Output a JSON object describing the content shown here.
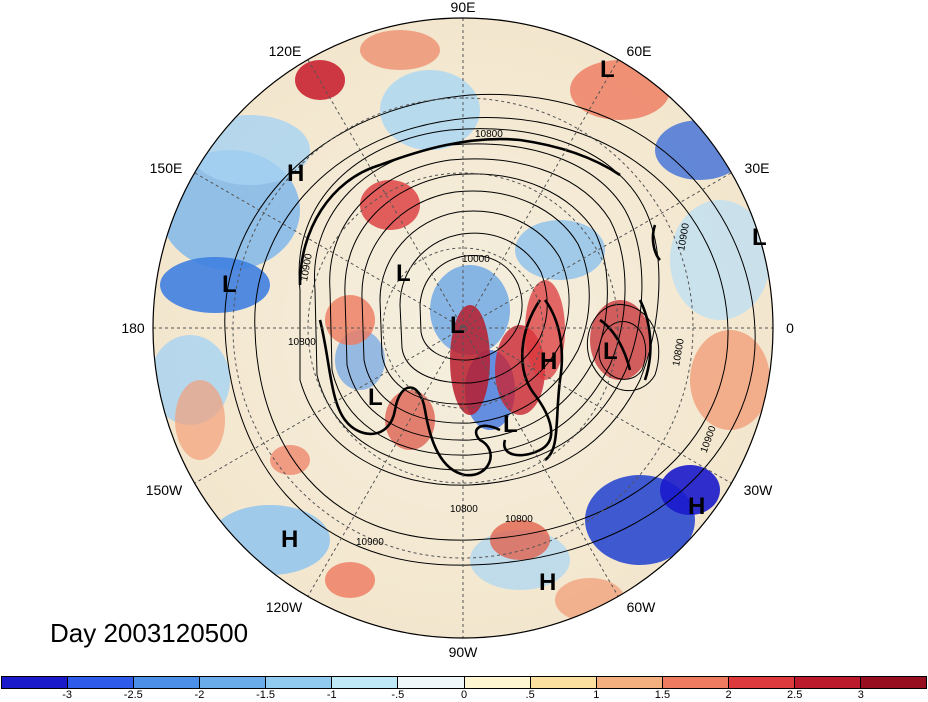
{
  "title": "Day 2003120500",
  "longitude_labels": [
    "90E",
    "60E",
    "30E",
    "0",
    "30W",
    "60W",
    "90W",
    "120W",
    "150W",
    "180",
    "150E",
    "120E"
  ],
  "pressure_centers": [
    {
      "type": "L",
      "lon": 60
    },
    {
      "type": "H",
      "lon": 150
    },
    {
      "type": "L",
      "lon": 172
    },
    {
      "type": "L",
      "lon": 15
    },
    {
      "type": "L",
      "lon": 110
    },
    {
      "type": "L",
      "lon": 90
    },
    {
      "type": "H",
      "lon": 30
    },
    {
      "type": "L",
      "lon": 0
    },
    {
      "type": "L",
      "lon": 200
    },
    {
      "type": "L",
      "lon": 45
    },
    {
      "type": "H",
      "lon": 330
    },
    {
      "type": "H",
      "lon": 220
    },
    {
      "type": "H",
      "lon": 300
    }
  ],
  "contour_labels": [
    "10800",
    "10900",
    "10000",
    "10800",
    "10900",
    "10800",
    "10900",
    "10800",
    "10900",
    "10800"
  ],
  "colorbar": {
    "ticks": [
      "-3",
      "-2.5",
      "-2",
      "-1.5",
      "-1",
      "-.5",
      "0",
      ".5",
      "1",
      "1.5",
      "2",
      "2.5",
      "3"
    ],
    "colors": [
      "#1a1acb",
      "#2f5bea",
      "#4b8fe9",
      "#6aace9",
      "#91cbef",
      "#bfe9f7",
      "#f0f7fb",
      "#fdf6d0",
      "#fbe0a0",
      "#f5b07f",
      "#ee7b5f",
      "#dc3a3c",
      "#bb1a2c",
      "#980e21"
    ]
  }
}
